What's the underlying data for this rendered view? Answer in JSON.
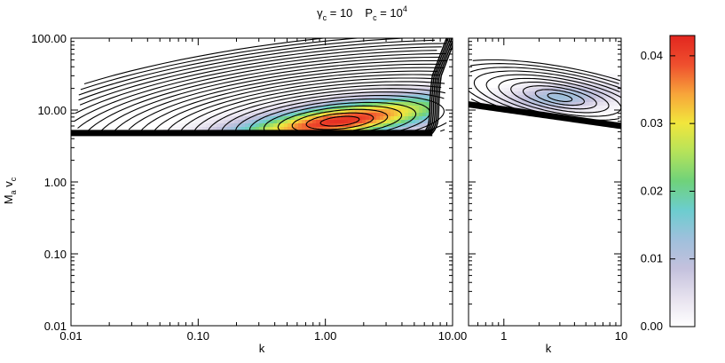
{
  "chart_data": {
    "type": "contour",
    "title_parts": {
      "gamma_sym": "γ",
      "gamma_sub": "c",
      "gamma_rest": " = 10",
      "p_sym": "P",
      "p_sub": "c",
      "p_eq": " = 10",
      "p_sup": "4"
    },
    "ylabel": {
      "m": "M",
      "m_sub": "a",
      "v": " v",
      "v_sub": "c"
    },
    "ylim": [
      0.01,
      100
    ],
    "yscale": "log",
    "y_ticks": [
      0.01,
      0.1,
      1,
      10,
      100
    ],
    "y_tick_labels": [
      "0.01",
      "0.10",
      "1.00",
      "10.00",
      "100.00"
    ],
    "panels": [
      {
        "xlabel": "k",
        "xlim": [
          0.01,
          10
        ],
        "xscale": "log",
        "x_ticks": [
          0.01,
          0.1,
          1,
          10
        ],
        "x_tick_labels": [
          "0.01",
          "0.10",
          "1.00",
          "10.00"
        ],
        "peak": {
          "k": 1.3,
          "M": 7.0,
          "value": 0.042
        },
        "lower_boundary_M": 5.0,
        "cutoff_k": 6.5
      },
      {
        "xlabel": "k",
        "xlim": [
          0.5,
          10
        ],
        "xscale": "log",
        "x_ticks": [
          1,
          10
        ],
        "x_tick_labels": [
          "1",
          "10"
        ],
        "peak": {
          "k": 3.0,
          "M": 15.0,
          "value": 0.013
        },
        "boundary_M_at_left": 12.0,
        "boundary_M_at_right": 6.0
      }
    ],
    "colorbar": {
      "range": [
        0,
        0.043
      ],
      "ticks": [
        0,
        0.01,
        0.02,
        0.03,
        0.04
      ],
      "tick_labels": [
        "0.00",
        "0.01",
        "0.02",
        "0.03",
        "0.04"
      ],
      "colors": [
        "#ffffff",
        "#e6e1ee",
        "#c4c1dd",
        "#9fc0dc",
        "#6ccdcf",
        "#6fd27a",
        "#b5e35a",
        "#f2e63c",
        "#f7a43a",
        "#ef4f2e",
        "#e2261f"
      ]
    }
  }
}
